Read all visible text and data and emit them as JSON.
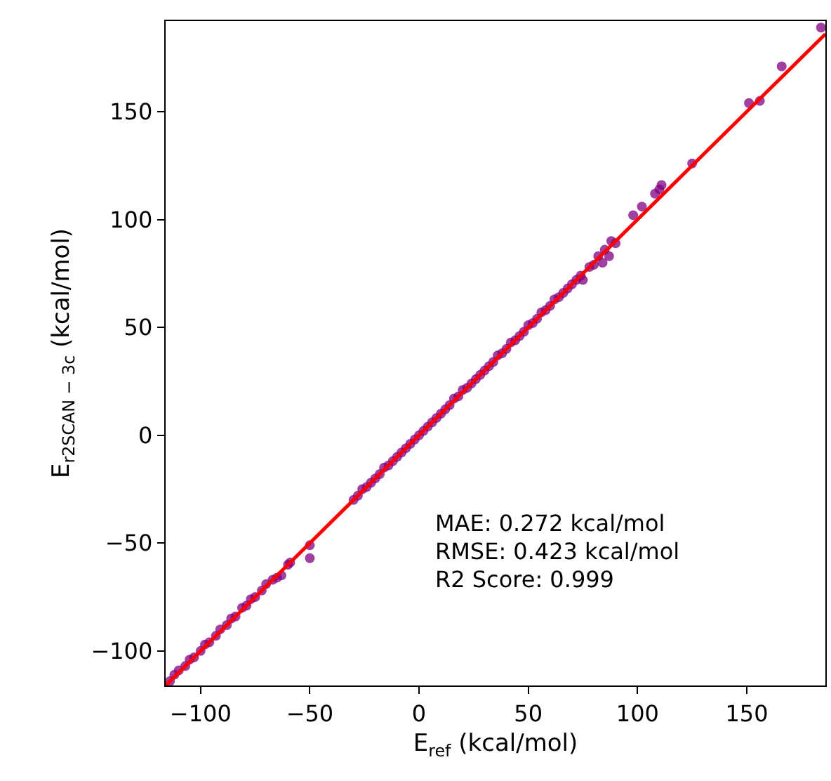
{
  "chart_data": {
    "type": "scatter",
    "xlabel": "E$_{ref}$ (kcal/mol)",
    "ylabel": "E$_{r2SCAN − 3c}$ (kcal/mol)",
    "xlim": [
      -116,
      186
    ],
    "ylim": [
      -116,
      192
    ],
    "xticks": [
      {
        "value": -100,
        "label": "−100"
      },
      {
        "value": -50,
        "label": "−50"
      },
      0,
      50,
      100,
      150
    ],
    "yticks": [
      {
        "value": -100,
        "label": "−100"
      },
      {
        "value": -50,
        "label": "−50"
      },
      0,
      50,
      100,
      150
    ],
    "grid": false,
    "annotations": [
      "MAE: 0.272 kcal/mol",
      "RMSE: 0.423 kcal/mol",
      "R2 Score: 0.999"
    ],
    "series": [
      {
        "marker": "circle",
        "color": "#800080",
        "x": [
          -114,
          -112,
          -110,
          -107,
          -105,
          -103,
          -100,
          -98,
          -96,
          -93,
          -91,
          -88,
          -86,
          -84,
          -81,
          -79,
          -77,
          -75,
          -72,
          -70,
          -67,
          -65,
          -63,
          -60,
          -59,
          -50,
          -50,
          -30,
          -28,
          -26,
          -24,
          -22,
          -20,
          -18,
          -16,
          -14,
          -12,
          -10,
          -8,
          -6,
          -4,
          -2,
          0,
          2,
          4,
          6,
          8,
          10,
          12,
          14,
          16,
          18,
          20,
          22,
          24,
          26,
          28,
          30,
          32,
          34,
          36,
          38,
          40,
          42,
          44,
          46,
          48,
          50,
          52,
          54,
          56,
          58,
          60,
          62,
          64,
          66,
          68,
          70,
          72,
          74,
          75,
          78,
          80,
          82,
          84,
          85,
          87,
          88,
          90,
          98,
          102,
          108,
          110,
          111,
          125,
          151,
          156,
          166,
          184
        ],
        "values": [
          -114,
          -111,
          -109,
          -107,
          -104,
          -103,
          -100,
          -97,
          -96,
          -93,
          -90,
          -88,
          -85,
          -84,
          -80,
          -79,
          -76,
          -75,
          -72,
          -69,
          -67,
          -66,
          -65,
          -60,
          -59,
          -51,
          -57,
          -30,
          -28,
          -25,
          -24,
          -22,
          -20,
          -18,
          -15,
          -14,
          -12,
          -10,
          -8,
          -6,
          -4,
          -2,
          0,
          2,
          4,
          6,
          8,
          10,
          12,
          14,
          17,
          18,
          21,
          22,
          24,
          26,
          28,
          30,
          32,
          34,
          37,
          38,
          40,
          43,
          44,
          46,
          48,
          51,
          52,
          54,
          57,
          58,
          60,
          63,
          64,
          66,
          68,
          70,
          72,
          74,
          72,
          78,
          79,
          83,
          80,
          86,
          83,
          90,
          89,
          102,
          106,
          112,
          114,
          116,
          126,
          154,
          155,
          171,
          189
        ]
      },
      {
        "type": "line",
        "color": "#ff0000",
        "x": [
          -116,
          186
        ],
        "values": [
          -116,
          186
        ],
        "line_style": "solid",
        "marker": "none"
      }
    ]
  }
}
